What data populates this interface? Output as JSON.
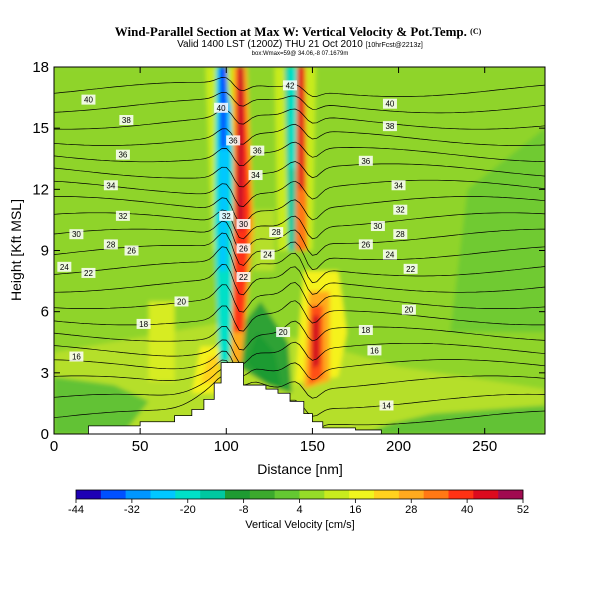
{
  "chart_data": {
    "type": "heatmap",
    "title": "Wind-Parallel Section at Max W: Vertical Velocity & Pot.Temp.",
    "title_mark": "(C)",
    "subtitle": "Valid 1400 LST (1200Z) THU 21 Oct 2010",
    "subtitle_right": "[10hrFcst@2213z]",
    "subtitle2": "box:Wmax=59@ 34.06,-8 07.1679m",
    "xlabel": "Distance [nm]",
    "ylabel": "Height [Kft MSL]",
    "xlim": [
      0,
      285
    ],
    "ylim": [
      0,
      18
    ],
    "x_ticks": [
      0,
      50,
      100,
      150,
      200,
      250
    ],
    "y_ticks": [
      0,
      3,
      6,
      9,
      12,
      15,
      18
    ],
    "colorbar": {
      "label": "Vertical Velocity [cm/s]",
      "ticks": [
        -44,
        -32,
        -20,
        -8,
        4,
        16,
        28,
        40,
        52
      ],
      "min": -44,
      "max": 52,
      "colors": [
        "#1e00b4",
        "#0050ff",
        "#0096ff",
        "#00c8ff",
        "#00e0c8",
        "#00c8a0",
        "#1e9b32",
        "#3caa2d",
        "#64c832",
        "#96dc28",
        "#c8eb1e",
        "#f0f51e",
        "#ffd21e",
        "#ffaa1e",
        "#ff7814",
        "#ff3214",
        "#dc0a1e",
        "#a00a50"
      ]
    },
    "terrain": [
      [
        0,
        0
      ],
      [
        20,
        0
      ],
      [
        20,
        0.4
      ],
      [
        50,
        0.4
      ],
      [
        50,
        0.6
      ],
      [
        70,
        0.6
      ],
      [
        70,
        0.9
      ],
      [
        80,
        0.9
      ],
      [
        80,
        1.2
      ],
      [
        87,
        1.2
      ],
      [
        87,
        1.7
      ],
      [
        93,
        1.7
      ],
      [
        93,
        2.5
      ],
      [
        97,
        2.5
      ],
      [
        97,
        3.5
      ],
      [
        110,
        3.5
      ],
      [
        110,
        2.4
      ],
      [
        123,
        2.4
      ],
      [
        123,
        2.2
      ],
      [
        130,
        2.2
      ],
      [
        130,
        2.0
      ],
      [
        137,
        2.0
      ],
      [
        137,
        1.6
      ],
      [
        145,
        1.6
      ],
      [
        145,
        1.0
      ],
      [
        150,
        1.0
      ],
      [
        150,
        0.6
      ],
      [
        156,
        0.6
      ],
      [
        156,
        0.3
      ],
      [
        175,
        0.3
      ],
      [
        175,
        0.2
      ],
      [
        190,
        0.2
      ],
      [
        190,
        0
      ],
      [
        285,
        0
      ]
    ],
    "contour_labels": [
      {
        "text": "42",
        "x": 137,
        "y": 17.1
      },
      {
        "text": "40",
        "x": 20,
        "y": 16.4
      },
      {
        "text": "40",
        "x": 97,
        "y": 16.0
      },
      {
        "text": "40",
        "x": 195,
        "y": 16.2
      },
      {
        "text": "38",
        "x": 42,
        "y": 15.4
      },
      {
        "text": "38",
        "x": 195,
        "y": 15.1
      },
      {
        "text": "36",
        "x": 104,
        "y": 14.4
      },
      {
        "text": "36",
        "x": 118,
        "y": 13.9
      },
      {
        "text": "36",
        "x": 40,
        "y": 13.7
      },
      {
        "text": "36",
        "x": 181,
        "y": 13.4
      },
      {
        "text": "34",
        "x": 117,
        "y": 12.7
      },
      {
        "text": "34",
        "x": 33,
        "y": 12.2
      },
      {
        "text": "34",
        "x": 200,
        "y": 12.2
      },
      {
        "text": "32",
        "x": 100,
        "y": 10.7
      },
      {
        "text": "32",
        "x": 40,
        "y": 10.7
      },
      {
        "text": "32",
        "x": 201,
        "y": 11.0
      },
      {
        "text": "30",
        "x": 110,
        "y": 10.3
      },
      {
        "text": "30",
        "x": 13,
        "y": 9.8
      },
      {
        "text": "30",
        "x": 188,
        "y": 10.2
      },
      {
        "text": "28",
        "x": 129,
        "y": 9.9
      },
      {
        "text": "28",
        "x": 33,
        "y": 9.3
      },
      {
        "text": "28",
        "x": 201,
        "y": 9.8
      },
      {
        "text": "26",
        "x": 110,
        "y": 9.1
      },
      {
        "text": "26",
        "x": 45,
        "y": 9.0
      },
      {
        "text": "26",
        "x": 181,
        "y": 9.3
      },
      {
        "text": "24",
        "x": 124,
        "y": 8.8
      },
      {
        "text": "24",
        "x": 6,
        "y": 8.2
      },
      {
        "text": "24",
        "x": 195,
        "y": 8.8
      },
      {
        "text": "22",
        "x": 110,
        "y": 7.7
      },
      {
        "text": "22",
        "x": 20,
        "y": 7.9
      },
      {
        "text": "22",
        "x": 207,
        "y": 8.1
      },
      {
        "text": "20",
        "x": 74,
        "y": 6.5
      },
      {
        "text": "20",
        "x": 206,
        "y": 6.1
      },
      {
        "text": "20",
        "x": 133,
        "y": 5.0
      },
      {
        "text": "18",
        "x": 52,
        "y": 5.4
      },
      {
        "text": "18",
        "x": 181,
        "y": 5.1
      },
      {
        "text": "16",
        "x": 13,
        "y": 3.8
      },
      {
        "text": "16",
        "x": 186,
        "y": 4.1
      },
      {
        "text": "14",
        "x": 193,
        "y": 1.4
      }
    ]
  }
}
